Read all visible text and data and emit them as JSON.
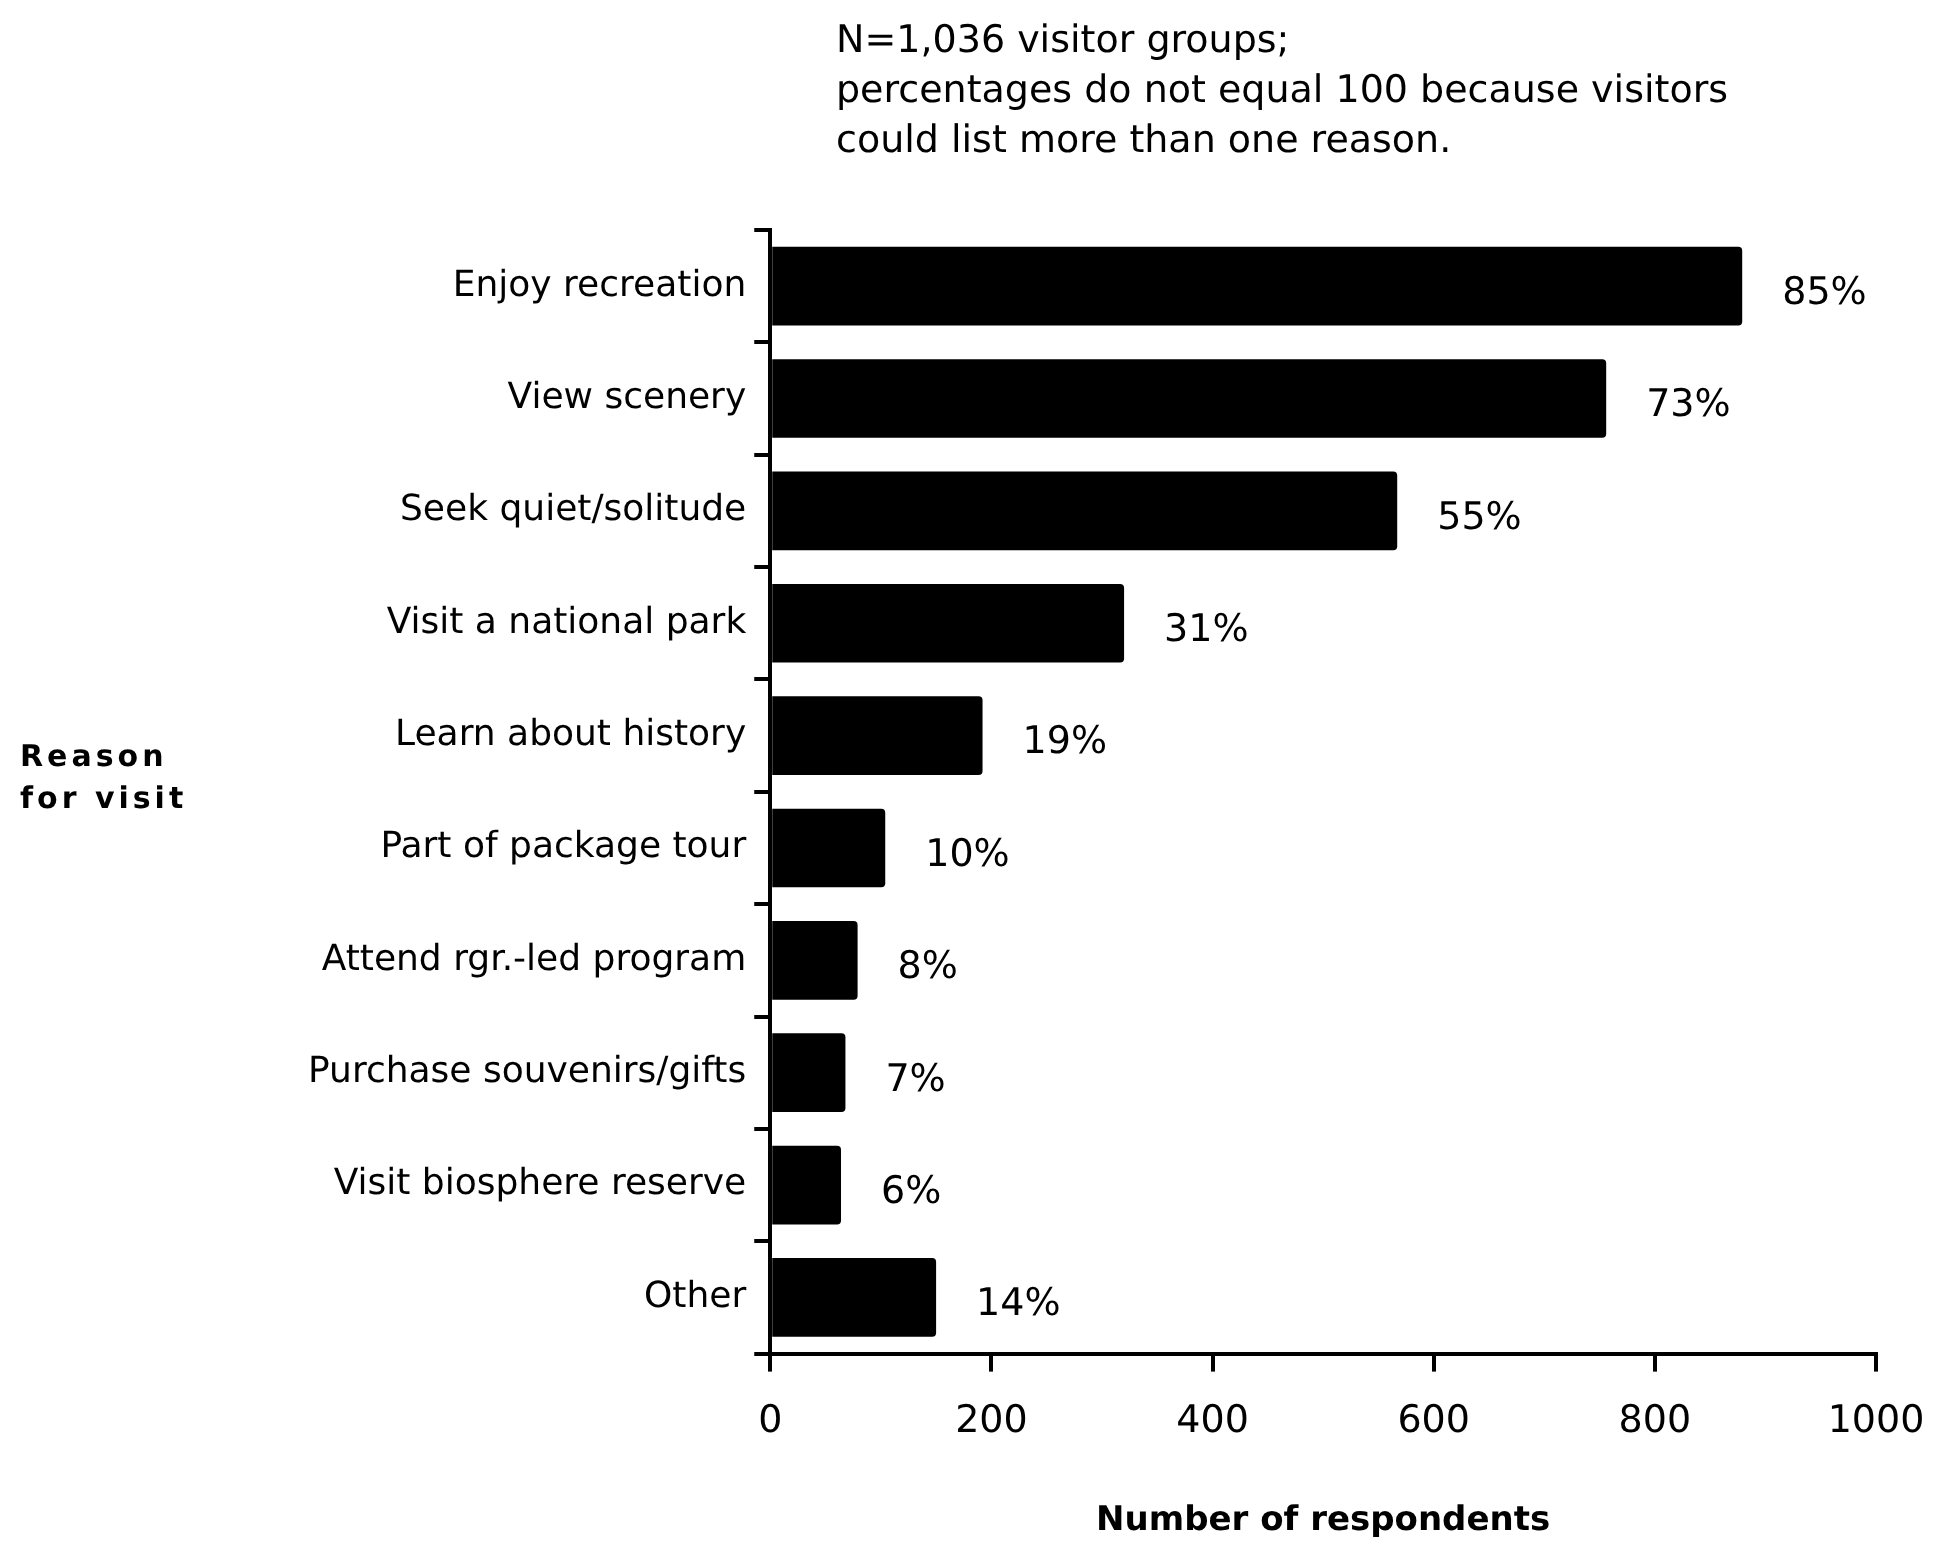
{
  "chart_data": {
    "type": "bar",
    "orientation": "horizontal",
    "subtitle": "N=1,036 visitor groups;\npercentages do not equal 100 because visitors\ncould list more than one reason.",
    "ylabel": "Reason\nfor visit",
    "xlabel": "Number of respondents",
    "categories": [
      "Enjoy recreation",
      "View scenery",
      "Seek quiet/solitude",
      "Visit a national park",
      "Learn about history",
      "Part of package tour",
      "Attend rgr.-led program",
      "Purchase souvenirs/gifts",
      "Visit biosphere reserve",
      "Other"
    ],
    "values": [
      879,
      756,
      567,
      320,
      192,
      104,
      79,
      68,
      64,
      150
    ],
    "annotations": [
      {
        "text": "85%",
        "x": 879,
        "y": "Enjoy recreation"
      },
      {
        "text": "73%",
        "x": 756,
        "y": "View scenery"
      },
      {
        "text": "55%",
        "x": 567,
        "y": "Seek quiet/solitude"
      },
      {
        "text": "31%",
        "x": 320,
        "y": "Visit a national park"
      },
      {
        "text": "19%",
        "x": 192,
        "y": "Learn about history"
      },
      {
        "text": "10%",
        "x": 104,
        "y": "Part of package tour"
      },
      {
        "text": "8%",
        "x": 79,
        "y": "Attend rgr.-led program"
      },
      {
        "text": "7%",
        "x": 68,
        "y": "Purchase souvenirs/gifts"
      },
      {
        "text": "6%",
        "x": 64,
        "y": "Visit biosphere reserve"
      },
      {
        "text": "14%",
        "x": 150,
        "y": "Other"
      }
    ],
    "color": "#000000",
    "xlim": [
      0,
      1000
    ],
    "xticks": [
      0,
      200,
      400,
      600,
      800,
      1000
    ],
    "grid": false,
    "legend": false
  }
}
